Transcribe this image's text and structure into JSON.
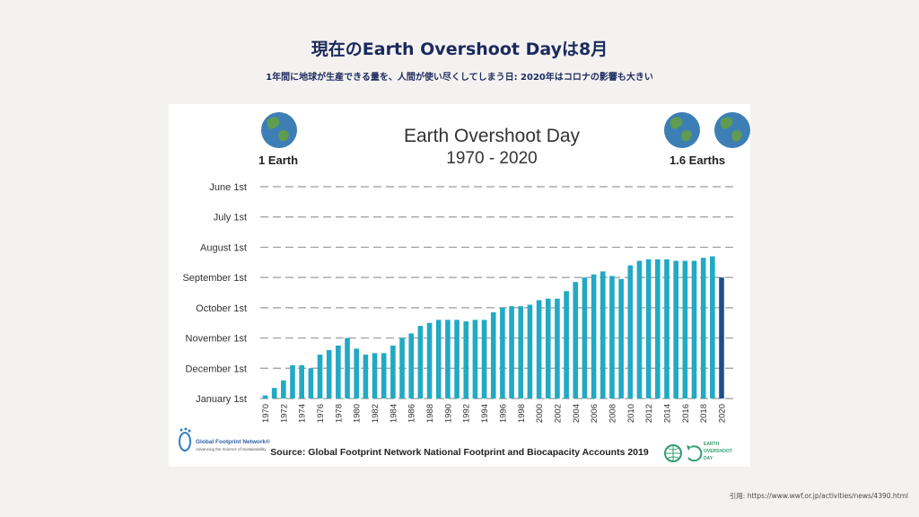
{
  "slide": {
    "title": "現在のEarth Overshoot Dayは8月",
    "subtitle": "1年間に地球が生産できる量を、人間が使い尽くしてしまう日: 2020年はコロナの影響も大きい",
    "citation": "引用: https://www.wwf.or.jp/activities/news/4390.html"
  },
  "colors": {
    "bar": "#22a9c4",
    "bar_highlight": "#1c4f8c",
    "title": "#1b2a5c",
    "axis_text": "#333333",
    "globe_ocean": "#3d7fb5",
    "globe_land": "#5f9c4f"
  },
  "chart_data": {
    "type": "bar",
    "title": "Earth Overshoot Day",
    "subtitle": "1970 - 2020",
    "left_badge": "1 Earth",
    "right_badge": "1.6 Earths",
    "source": "Source: Global Footprint Network National Footprint and Biocapacity Accounts 2019",
    "footer_logo_left": [
      "Global Footprint Network®",
      "Advancing the Science of Sustainability"
    ],
    "footer_logo_right": [
      "EARTH",
      "OVERSHOOT",
      "DAY"
    ],
    "ylabels": [
      "June 1st",
      "July 1st",
      "August 1st",
      "September 1st",
      "October 1st",
      "November 1st",
      "December 1st",
      "January 1st"
    ],
    "ylabel_values": [
      7,
      6,
      5,
      4,
      3,
      2,
      1,
      0
    ],
    "ylim": [
      0,
      7
    ],
    "value_unit": "months before year end",
    "categories": [
      1970,
      1971,
      1972,
      1973,
      1974,
      1975,
      1976,
      1977,
      1978,
      1979,
      1980,
      1981,
      1982,
      1983,
      1984,
      1985,
      1986,
      1987,
      1988,
      1989,
      1990,
      1991,
      1992,
      1993,
      1994,
      1995,
      1996,
      1997,
      1998,
      1999,
      2000,
      2001,
      2002,
      2003,
      2004,
      2005,
      2006,
      2007,
      2008,
      2009,
      2010,
      2011,
      2012,
      2013,
      2014,
      2015,
      2016,
      2017,
      2018,
      2019,
      2020
    ],
    "xtick_labels": [
      "1970",
      "1972",
      "1974",
      "1976",
      "1978",
      "1980",
      "1982",
      "1984",
      "1986",
      "1988",
      "1990",
      "1992",
      "1994",
      "1996",
      "1998",
      "2000",
      "2002",
      "2004",
      "2006",
      "2008",
      "2010",
      "2012",
      "2014",
      "2016",
      "2018",
      "2020"
    ],
    "values": [
      0.1,
      0.35,
      0.6,
      1.1,
      1.1,
      1.0,
      1.45,
      1.6,
      1.75,
      2.0,
      1.65,
      1.45,
      1.5,
      1.5,
      1.75,
      2.0,
      2.15,
      2.4,
      2.5,
      2.6,
      2.6,
      2.6,
      2.55,
      2.6,
      2.6,
      2.85,
      3.0,
      3.05,
      3.05,
      3.1,
      3.25,
      3.3,
      3.3,
      3.55,
      3.85,
      4.0,
      4.1,
      4.2,
      4.05,
      3.95,
      4.4,
      4.55,
      4.6,
      4.6,
      4.6,
      4.55,
      4.55,
      4.55,
      4.65,
      4.7,
      4.0
    ],
    "highlight_category": 2020
  }
}
